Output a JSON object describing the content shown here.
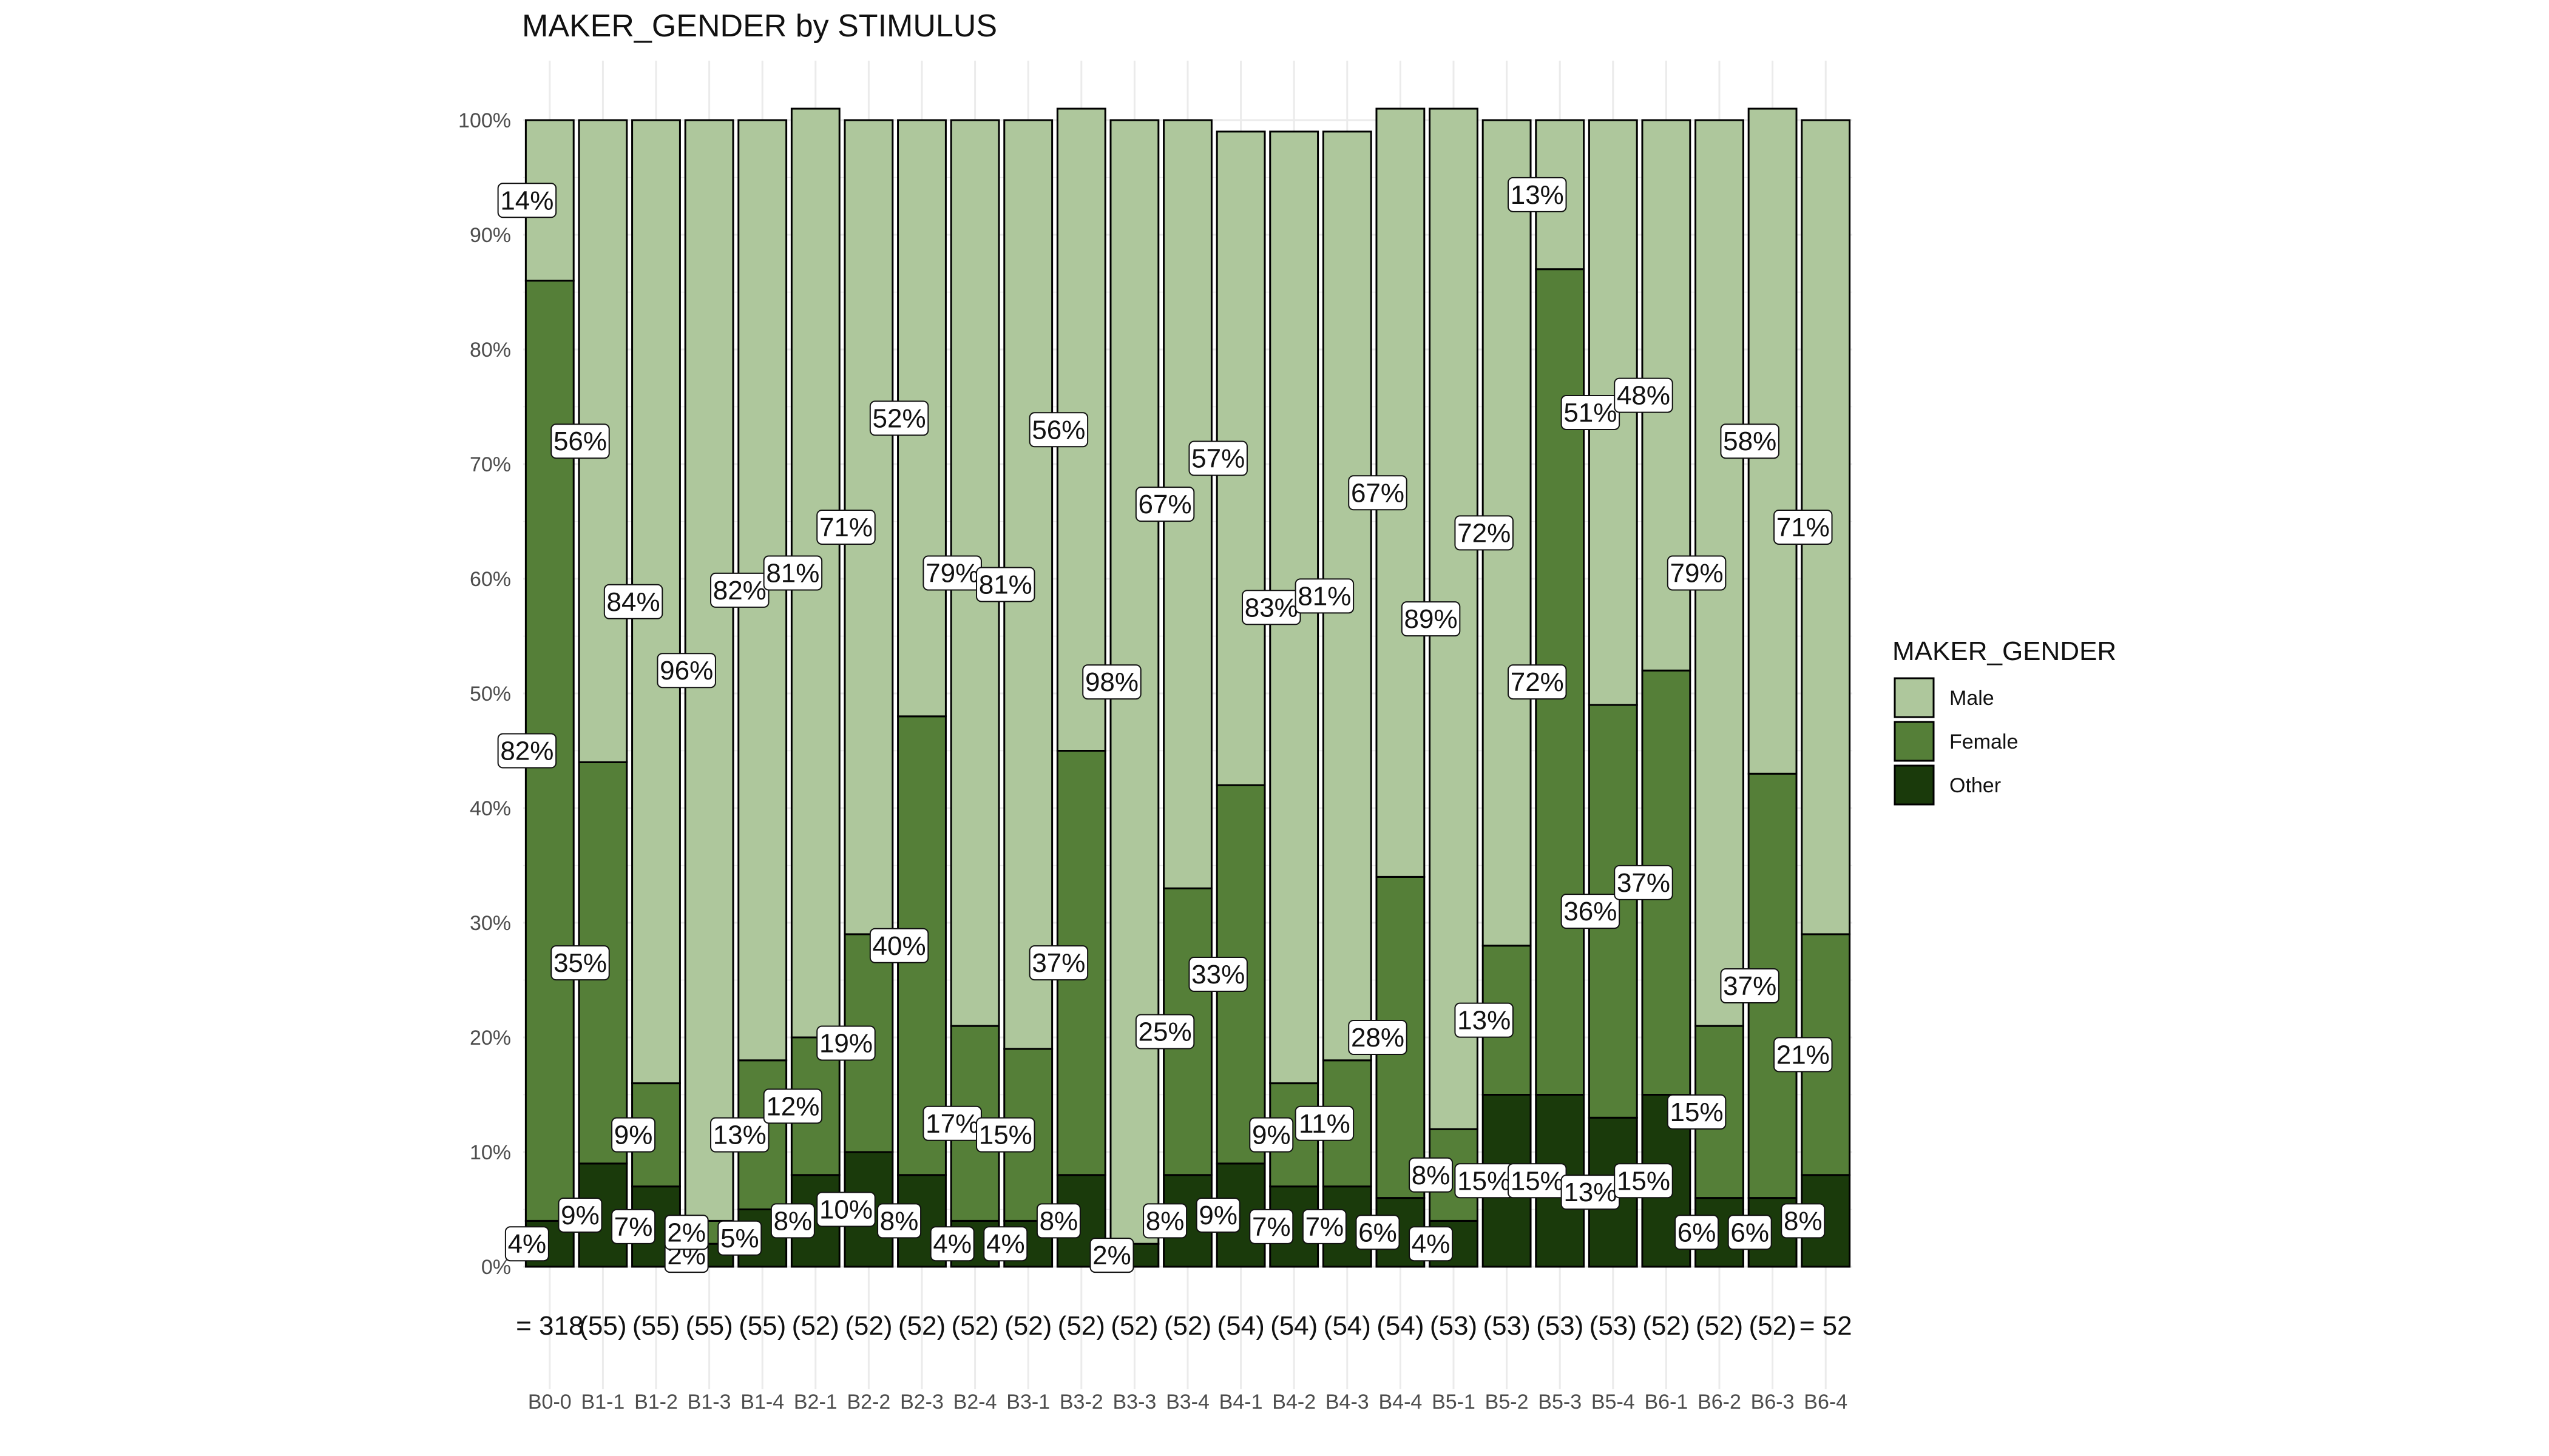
{
  "chart_data": {
    "type": "bar",
    "stacked": true,
    "title": "MAKER_GENDER by STIMULUS",
    "xlabel": "",
    "ylabel": "",
    "ylim": [
      0,
      100
    ],
    "y_ticks": [
      "0%",
      "10%",
      "20%",
      "30%",
      "40%",
      "50%",
      "60%",
      "70%",
      "80%",
      "90%",
      "100%"
    ],
    "grid": true,
    "legend": {
      "title": "MAKER_GENDER",
      "position": "right"
    },
    "categories": [
      "B0-0",
      "B1-1",
      "B1-2",
      "B1-3",
      "B1-4",
      "B2-1",
      "B2-2",
      "B2-3",
      "B2-4",
      "B3-1",
      "B3-2",
      "B3-3",
      "B3-4",
      "B4-1",
      "B4-2",
      "B4-3",
      "B4-4",
      "B5-1",
      "B5-2",
      "B5-3",
      "B5-4",
      "B6-1",
      "B6-2",
      "B6-3",
      "B6-4"
    ],
    "n_labels": [
      "= 318",
      "(55)",
      "(55)",
      "(55)",
      "(55)",
      "(52)",
      "(52)",
      "(52)",
      "(52)",
      "(52)",
      "(52)",
      "(52)",
      "(52)",
      "(54)",
      "(54)",
      "(54)",
      "(54)",
      "(53)",
      "(53)",
      "(53)",
      "(53)",
      "(52)",
      "(52)",
      "(52)",
      "= 52"
    ],
    "series": [
      {
        "name": "Male",
        "color": "#aec79c",
        "values": [
          14,
          56,
          84,
          96,
          82,
          81,
          71,
          52,
          79,
          81,
          56,
          98,
          67,
          57,
          83,
          81,
          67,
          89,
          72,
          13,
          51,
          48,
          79,
          58,
          71
        ],
        "labels": [
          "14%",
          "56%",
          "84%",
          "96%",
          "82%",
          "81%",
          "71%",
          "52%",
          "79%",
          "81%",
          "56%",
          "98%",
          "67%",
          "57%",
          "83%",
          "81%",
          "67%",
          "89%",
          "72%",
          "13%",
          "51%",
          "48%",
          "79%",
          "58%",
          "71%"
        ]
      },
      {
        "name": "Female",
        "color": "#557f38",
        "values": [
          82,
          35,
          9,
          2,
          13,
          12,
          19,
          40,
          17,
          15,
          37,
          0,
          25,
          33,
          9,
          11,
          28,
          8,
          13,
          72,
          36,
          37,
          15,
          37,
          21
        ],
        "labels": [
          "82%",
          "35%",
          "9%",
          "2%",
          "13%",
          "12%",
          "19%",
          "40%",
          "17%",
          "15%",
          "37%",
          "",
          "25%",
          "33%",
          "9%",
          "11%",
          "28%",
          "8%",
          "13%",
          "72%",
          "36%",
          "37%",
          "15%",
          "37%",
          "21%"
        ]
      },
      {
        "name": "Other",
        "color": "#1a3a0b",
        "values": [
          4,
          9,
          7,
          2,
          5,
          8,
          10,
          8,
          4,
          4,
          8,
          2,
          8,
          9,
          7,
          7,
          6,
          4,
          15,
          15,
          13,
          15,
          6,
          6,
          8
        ],
        "labels": [
          "4%",
          "9%",
          "7%",
          "2%",
          "5%",
          "8%",
          "10%",
          "8%",
          "4%",
          "4%",
          "8%",
          "2%",
          "8%",
          "9%",
          "7%",
          "7%",
          "6%",
          "4%",
          "15%",
          "15%",
          "13%",
          "15%",
          "6%",
          "6%",
          "8%"
        ]
      }
    ]
  }
}
